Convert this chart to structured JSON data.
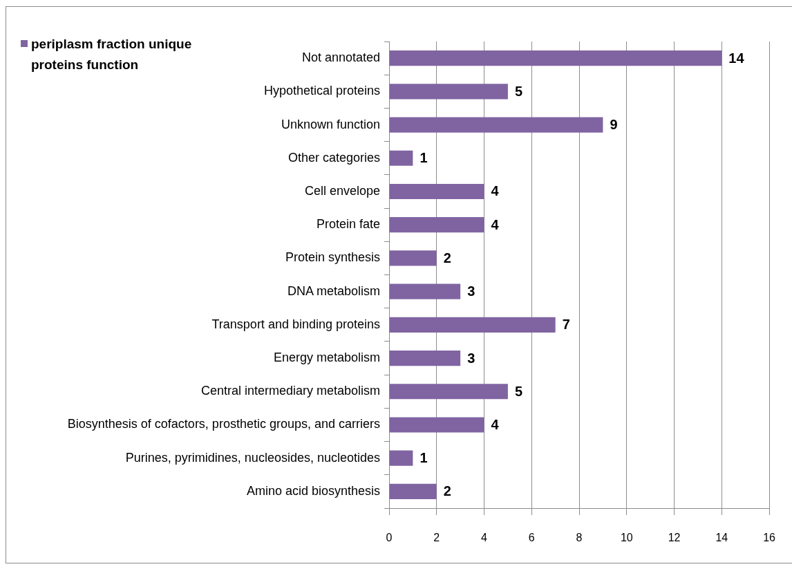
{
  "chart_data": {
    "type": "bar",
    "orientation": "horizontal",
    "categories": [
      "Not annotated",
      "Hypothetical proteins",
      "Unknown function",
      "Other categories",
      "Cell envelope",
      "Protein fate",
      "Protein synthesis",
      "DNA metabolism",
      "Transport and binding proteins",
      "Energy metabolism",
      "Central intermediary metabolism",
      "Biosynthesis of cofactors, prosthetic groups, and carriers",
      "Purines, pyrimidines, nucleosides, nucleotides",
      "Amino acid biosynthesis"
    ],
    "series": [
      {
        "name": "periplasm fraction unique proteins function",
        "color": "#8064a2",
        "values": [
          14,
          5,
          9,
          1,
          4,
          4,
          2,
          3,
          7,
          3,
          5,
          4,
          1,
          2
        ]
      }
    ],
    "xlim": [
      0,
      16
    ],
    "xticks": [
      0,
      2,
      4,
      6,
      8,
      10,
      12,
      14,
      16
    ],
    "grid": "x",
    "legend": "top left",
    "data_labels": true
  }
}
